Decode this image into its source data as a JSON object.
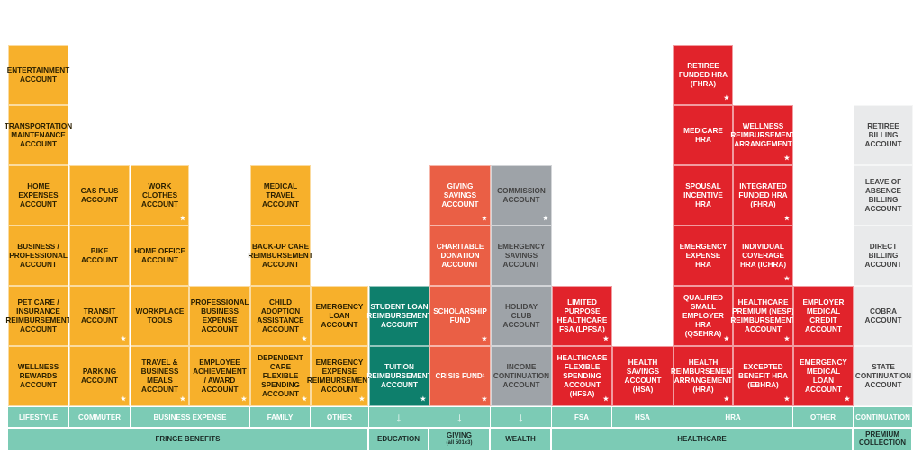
{
  "colors": {
    "orange": "#f7b02b",
    "green": "#0e7f6c",
    "coral": "#ea5f45",
    "grey": "#9ea3a8",
    "red": "#e1232b",
    "lightgrey": "#e9eaeb",
    "band": "#7ccbb5"
  },
  "columns": [
    {
      "id": "lifestyle",
      "color": "orange",
      "cells": [
        "Entertainment Account",
        "Transportation Maintenance Account",
        "Home Expenses Account",
        "Business / Professional Account",
        "Pet Care / Insurance Reimbursement Account",
        "Wellness Rewards Account"
      ]
    },
    {
      "id": "commuter",
      "color": "orange",
      "cells": [
        "Gas Plus Account",
        "Bike Account",
        "Transit Account",
        "Parking Account"
      ]
    },
    {
      "id": "business1",
      "color": "orange",
      "cells": [
        "Work Clothes Account",
        "Home Office Account",
        "Workplace Tools",
        "Travel & Business Meals Account"
      ]
    },
    {
      "id": "business2",
      "color": "orange",
      "cells": [
        "Professional Business Expense Account",
        "Employee Achievement / Award Account"
      ]
    },
    {
      "id": "family",
      "color": "orange",
      "cells": [
        "Medical Travel Account",
        "Back-Up Care Reimbursement Account",
        "Child Adoption Assistance Account",
        "Dependent Care Flexible Spending Account"
      ]
    },
    {
      "id": "other",
      "color": "orange",
      "cells": [
        "Emergency Loan Account",
        "Emergency Expense Reimbursement Account"
      ]
    },
    {
      "id": "education",
      "color": "green",
      "cells": [
        "Student Loan Reimbursement Account",
        "Tuition Reimbursement Account"
      ]
    },
    {
      "id": "giving",
      "color": "coral",
      "cells": [
        "Giving Savings Account",
        "Charitable Donation Account",
        "Scholarship Fund",
        "Crisis Fund¹"
      ]
    },
    {
      "id": "wealth",
      "color": "grey",
      "cells": [
        "Commission Account",
        "Emergency Savings Account",
        "Holiday Club Account",
        "Income Continuation Account"
      ]
    },
    {
      "id": "fsa",
      "color": "red",
      "cells": [
        "Limited Purpose Healthcare FSA (LPFSA)",
        "Healthcare Flexible Spending Account (HFSA)"
      ]
    },
    {
      "id": "hsa",
      "color": "red",
      "cells": [
        "Health Savings Account (HSA)"
      ]
    },
    {
      "id": "hra1",
      "color": "red",
      "cells": [
        "Retiree Funded HRA (FHRA)",
        "Medicare HRA",
        "Spousal Incentive HRA",
        "Emergency Expense HRA",
        "Qualified Small Employer HRA (QSEHRA)",
        "Health Reimbursement Arrangement (HRA)"
      ]
    },
    {
      "id": "hra2",
      "color": "red",
      "cells": [
        "Wellness Reimbursement Arrangement",
        "Integrated Funded HRA (FHRA)",
        "Individual Coverage HRA (ICHRA)",
        "Healthcare Premium (NESP) Reimbursement Account",
        "Excepted Benefit HRA (EBHRA)"
      ]
    },
    {
      "id": "hcother",
      "color": "red",
      "cells": [
        "Employer Medical Credit Account",
        "Emergency Medical Loan Account"
      ]
    },
    {
      "id": "premium",
      "color": "lightgrey",
      "cells": [
        "Retiree Billing Account",
        "Leave of Absence Billing Account",
        "Direct Billing Account",
        "COBRA Account",
        "State Continuation Account"
      ]
    }
  ],
  "categories": [
    "Lifestyle",
    "Commuter",
    "Business Expense",
    "Family",
    "Other",
    "↓",
    "↓",
    "↓",
    "FSA",
    "HSA",
    "HRA",
    "Other",
    "Continuation"
  ],
  "sections": [
    {
      "label": "Fringe Benefits",
      "sub": ""
    },
    {
      "label": "Education",
      "sub": ""
    },
    {
      "label": "Giving",
      "sub": "(all 501c3)"
    },
    {
      "label": "Wealth",
      "sub": ""
    },
    {
      "label": "Healthcare",
      "sub": ""
    },
    {
      "label": "Premium Collection",
      "sub": ""
    }
  ]
}
